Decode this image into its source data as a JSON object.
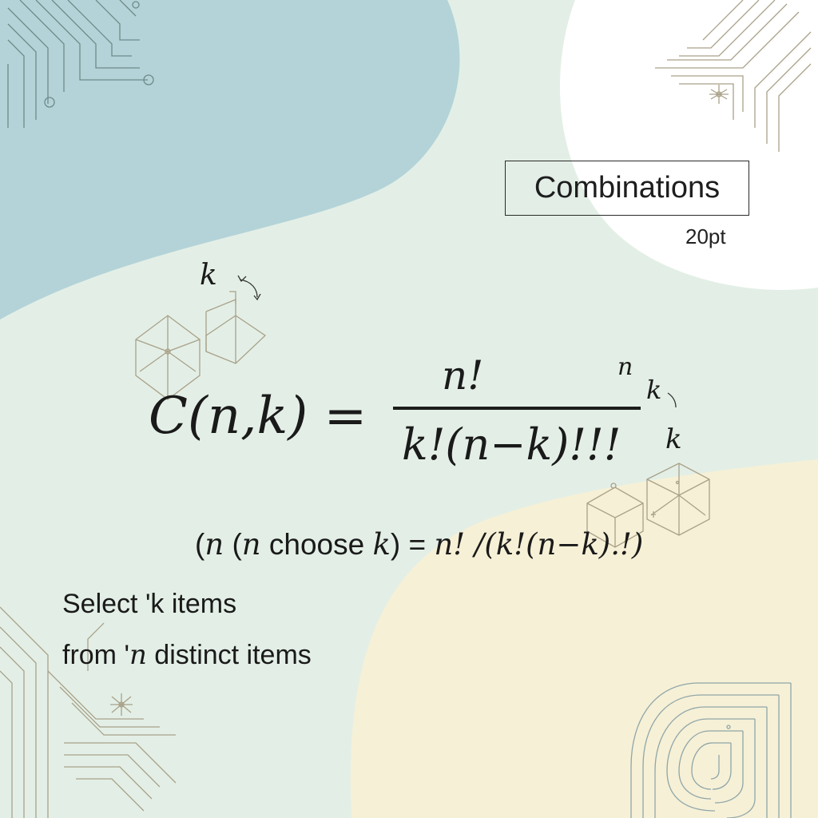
{
  "title": "Combinations",
  "size_label": "20pt",
  "formula": {
    "lhs": "C(n,k) =",
    "numerator": "n!",
    "denominator": "k!(n−k)!!!",
    "side_labels": [
      "n",
      "k",
      "k"
    ],
    "floating_label": "k"
  },
  "inline_formula": {
    "open_paren": "(",
    "var_n_1": "n",
    "open_paren_2": " (",
    "var_n_2": "n",
    "choose_word": " choose ",
    "var_k": "k",
    "equals": ") = ",
    "rhs": "n! /(k!(n−k).!)"
  },
  "description": {
    "line1": "Select 'k items",
    "line2_prefix": "from '",
    "line2_var": "n",
    "line2_suffix": " distinct items"
  },
  "colors": {
    "background": "#e3efe6",
    "blue_blob": "#b3d3d8",
    "white_blob": "#ffffff",
    "cream_blob": "#f6f0d6",
    "line_art": "#a9a189",
    "text": "#1a1a1a"
  }
}
